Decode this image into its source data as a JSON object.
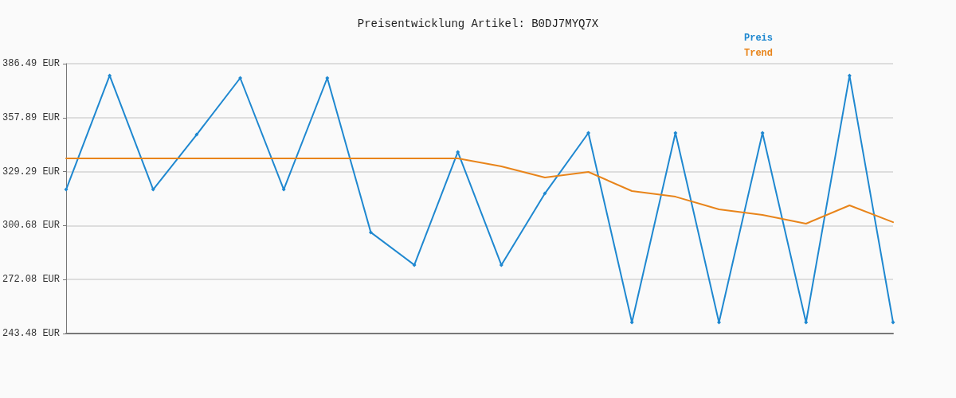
{
  "chart_data": {
    "type": "line",
    "title": "Preisentwicklung Artikel: B0DJ7MYQ7X",
    "categories": [
      null,
      null,
      null,
      null,
      null,
      null,
      null,
      null,
      null,
      null,
      null,
      null,
      null,
      null,
      null,
      null,
      null,
      null,
      null,
      null
    ],
    "series": [
      {
        "name": "Preis",
        "color": "#1f88d0",
        "marker": "diamond",
        "values": [
          319.8,
          380.2,
          319.8,
          348.9,
          378.9,
          319.8,
          378.9,
          297.1,
          279.8,
          339.7,
          279.8,
          317.7,
          349.8,
          249.4,
          349.8,
          249.4,
          349.8,
          249.4,
          380.2,
          249.4
        ]
      },
      {
        "name": "Trend",
        "color": "#e8841a",
        "marker": "none",
        "values": [
          336.3,
          336.3,
          336.3,
          336.3,
          336.3,
          336.3,
          336.3,
          336.3,
          336.3,
          336.3,
          332.1,
          326.2,
          329.1,
          319.0,
          316.0,
          309.3,
          306.3,
          301.7,
          311.4,
          302.5
        ]
      }
    ],
    "ylim": [
      243.48,
      386.49
    ],
    "yticks": [
      {
        "value": 243.48,
        "label": "243.48 EUR"
      },
      {
        "value": 272.08,
        "label": "272.08 EUR"
      },
      {
        "value": 300.68,
        "label": "300.68 EUR"
      },
      {
        "value": 329.29,
        "label": "329.29 EUR"
      },
      {
        "value": 357.89,
        "label": "357.89 EUR"
      },
      {
        "value": 386.49,
        "label": "386.49 EUR"
      }
    ],
    "grid": "y",
    "legend": "top right",
    "tick_labels": "y",
    "line_style": "solid"
  }
}
